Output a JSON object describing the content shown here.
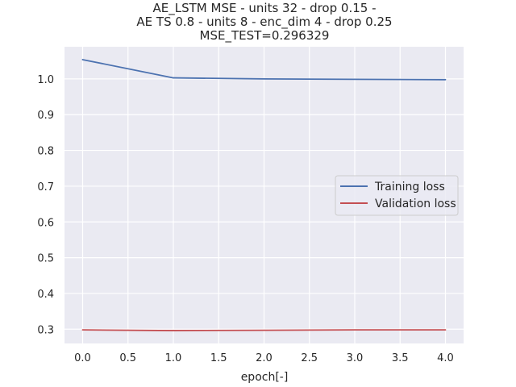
{
  "chart_data": {
    "type": "line",
    "title": [
      "AE_LSTM MSE - units 32 - drop 0.15 -",
      "AE TS 0.8 - units 8 - enc_dim 4 - drop 0.25",
      "MSE_TEST=0.296329"
    ],
    "xlabel": "epoch[-]",
    "ylabel": "",
    "x": [
      0,
      1,
      2,
      3,
      4
    ],
    "xlim": [
      -0.2,
      4.2
    ],
    "ylim": [
      0.26,
      1.09
    ],
    "xticks": [
      0.0,
      0.5,
      1.0,
      1.5,
      2.0,
      2.5,
      3.0,
      3.5,
      4.0
    ],
    "xtick_labels": [
      "0.0",
      "0.5",
      "1.0",
      "1.5",
      "2.0",
      "2.5",
      "3.0",
      "3.5",
      "4.0"
    ],
    "yticks": [
      0.3,
      0.4,
      0.5,
      0.6,
      0.7,
      0.8,
      0.9,
      1.0
    ],
    "ytick_labels": [
      "0.3",
      "0.4",
      "0.5",
      "0.6",
      "0.7",
      "0.8",
      "0.9",
      "1.0"
    ],
    "grid": true,
    "legend_position": "center-right",
    "series": [
      {
        "name": "Training loss",
        "color": "#4c72b0",
        "values": [
          1.054,
          1.003,
          1.0,
          0.999,
          0.998
        ]
      },
      {
        "name": "Validation loss",
        "color": "#c44e52",
        "values": [
          0.298,
          0.296,
          0.297,
          0.298,
          0.298
        ]
      }
    ]
  },
  "style": {
    "plot_bg": "#eaeaf2",
    "grid_color": "#ffffff",
    "text_color": "#262626"
  }
}
